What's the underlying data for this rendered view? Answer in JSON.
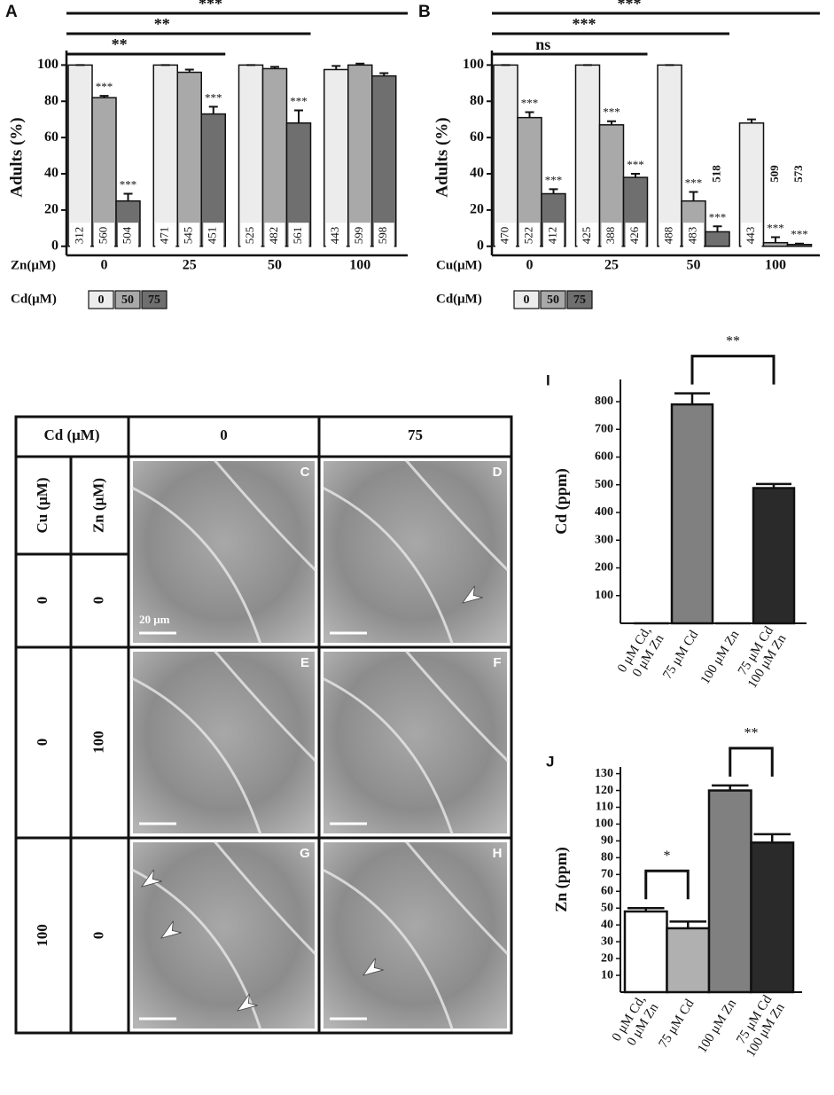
{
  "chart_data": [
    {
      "panel": "A",
      "type": "bar",
      "ylabel": "Adults (%)",
      "xlabel": "Zn(μM)",
      "legend_title": "Cd(μM)",
      "categories": [
        "0",
        "25",
        "50",
        "100"
      ],
      "series": [
        {
          "name": "0",
          "color": "#ececec",
          "values": [
            100,
            100,
            100,
            97.5
          ],
          "errors": [
            0,
            0,
            0,
            2
          ],
          "n": [
            312,
            471,
            525,
            443
          ]
        },
        {
          "name": "50",
          "color": "#a9a9a9",
          "values": [
            82,
            96,
            98,
            100
          ],
          "errors": [
            1,
            1.5,
            1,
            0.8
          ],
          "n": [
            560,
            545,
            482,
            599
          ]
        },
        {
          "name": "75",
          "color": "#6f6f6f",
          "values": [
            25,
            73,
            68,
            94
          ],
          "errors": [
            4,
            4,
            7,
            1.5
          ],
          "n": [
            504,
            451,
            561,
            598
          ]
        }
      ],
      "ylim": [
        -5,
        108
      ],
      "yticks": [
        0,
        20,
        40,
        60,
        80,
        100
      ],
      "annotations": [
        {
          "text": "***",
          "series": 1,
          "category": 0
        },
        {
          "text": "***",
          "series": 2,
          "category": 0
        },
        {
          "text": "***",
          "series": 2,
          "category": 1
        },
        {
          "text": "***",
          "series": 2,
          "category": 2
        }
      ],
      "brackets": [
        {
          "text": "***",
          "from": 0,
          "to": 3
        },
        {
          "text": "**",
          "from": 0,
          "to": 2
        },
        {
          "text": "**",
          "from": 0,
          "to": 1
        }
      ]
    },
    {
      "panel": "B",
      "type": "bar",
      "ylabel": "Adults (%)",
      "xlabel": "Cu(μM)",
      "legend_title": "Cd(μM)",
      "categories": [
        "0",
        "25",
        "50",
        "100"
      ],
      "series": [
        {
          "name": "0",
          "color": "#ececec",
          "values": [
            100,
            100,
            100,
            68
          ],
          "errors": [
            0,
            0,
            0,
            2
          ],
          "n": [
            470,
            425,
            488,
            443
          ]
        },
        {
          "name": "50",
          "color": "#a9a9a9",
          "values": [
            71,
            67,
            25,
            2
          ],
          "errors": [
            3,
            2,
            5,
            3
          ],
          "n": [
            522,
            388,
            483,
            509
          ]
        },
        {
          "name": "75",
          "color": "#6f6f6f",
          "values": [
            29,
            38,
            8,
            1
          ],
          "errors": [
            2.5,
            2,
            3,
            0.5
          ],
          "n": [
            412,
            426,
            518,
            573
          ]
        }
      ],
      "ylim": [
        -5,
        108
      ],
      "yticks": [
        0,
        20,
        40,
        60,
        80,
        100
      ],
      "annotations": [
        {
          "text": "***",
          "series": 1,
          "category": 0
        },
        {
          "text": "***",
          "series": 2,
          "category": 0
        },
        {
          "text": "***",
          "series": 1,
          "category": 1
        },
        {
          "text": "***",
          "series": 2,
          "category": 1
        },
        {
          "text": "***",
          "series": 1,
          "category": 2
        },
        {
          "text": "***",
          "series": 2,
          "category": 2
        },
        {
          "text": "***",
          "series": 1,
          "category": 3
        },
        {
          "text": "***",
          "series": 2,
          "category": 3
        }
      ],
      "brackets": [
        {
          "text": "***",
          "from": 0,
          "to": 3
        },
        {
          "text": "***",
          "from": 0,
          "to": 2
        },
        {
          "text": "ns",
          "from": 0,
          "to": 1
        }
      ]
    },
    {
      "panel": "I",
      "type": "simplebar",
      "ylabel": "Cd (ppm)",
      "categories": [
        [
          "0 μM Cd,",
          "0 μM Zn"
        ],
        [
          "75 μM Cd"
        ],
        [
          "100 μM Zn"
        ],
        [
          "75 μM Cd",
          "100 μM Zn"
        ]
      ],
      "values": [
        0,
        790,
        0,
        488
      ],
      "errors": [
        0,
        40,
        0,
        15
      ],
      "colors": [
        "#ffffff",
        "#808080",
        "#b0b0b0",
        "#2a2a2a"
      ],
      "ylim": [
        0,
        880
      ],
      "yticks": [
        100,
        200,
        300,
        400,
        500,
        600,
        700,
        800
      ],
      "brackets": [
        {
          "text": "**",
          "from": 1,
          "to": 3
        }
      ]
    },
    {
      "panel": "J",
      "type": "simplebar",
      "ylabel": "Zn (ppm)",
      "categories": [
        [
          "0 μM Cd,",
          "0 μM Zn"
        ],
        [
          "75 μM Cd"
        ],
        [
          "100 μM Zn"
        ],
        [
          "75 μM Cd",
          "100 μM Zn"
        ]
      ],
      "values": [
        48,
        38,
        120,
        89
      ],
      "errors": [
        2,
        4,
        3,
        5
      ],
      "colors": [
        "#ffffff",
        "#b0b0b0",
        "#808080",
        "#2a2a2a"
      ],
      "ylim": [
        0,
        134
      ],
      "yticks": [
        10,
        20,
        30,
        40,
        50,
        60,
        70,
        80,
        90,
        100,
        110,
        120,
        130
      ],
      "brackets": [
        {
          "text": "*",
          "from": 0,
          "to": 1
        },
        {
          "text": "**",
          "from": 2,
          "to": 3
        }
      ]
    }
  ],
  "micrographs": {
    "header": "Cd (μM)",
    "columns": [
      "0",
      "75"
    ],
    "row_headers": [
      "Cu (μM)",
      "Zn (μM)"
    ],
    "rows": [
      [
        "0",
        "0"
      ],
      [
        "0",
        "100"
      ],
      [
        "100",
        "0"
      ]
    ],
    "panels": [
      [
        "C",
        "D"
      ],
      [
        "E",
        "F"
      ],
      [
        "G",
        "H"
      ]
    ],
    "scale_bar": "20 μm"
  }
}
